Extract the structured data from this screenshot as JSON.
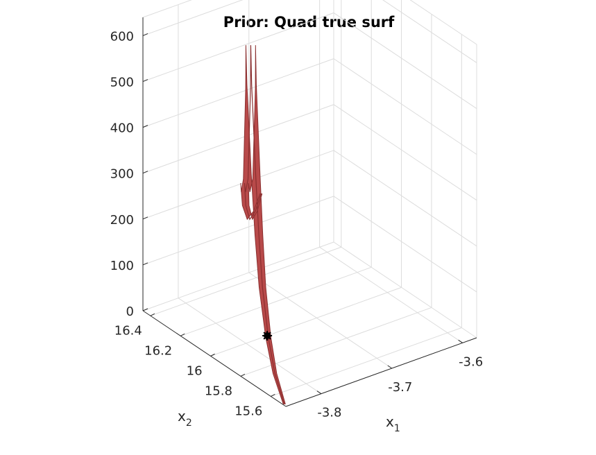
{
  "chart_data": {
    "type": "surface3d",
    "title": "Prior: Quad true surf",
    "xlabel": {
      "base": "x",
      "sub": "1"
    },
    "ylabel": {
      "base": "x",
      "sub": "2"
    },
    "zlabel": "",
    "x_ticks": [
      "-3.8",
      "-3.7",
      "-3.6"
    ],
    "y_ticks": [
      "15.6",
      "15.8",
      "16",
      "16.2",
      "16.4"
    ],
    "z_ticks": [
      "0",
      "100",
      "200",
      "300",
      "400",
      "500",
      "600"
    ],
    "xlim": [
      -3.85,
      -3.58
    ],
    "ylim": [
      15.5,
      16.45
    ],
    "zlim": [
      0,
      640
    ],
    "surface_color": "#b84a4a",
    "surface_edge_color": "#8a2f2f",
    "marker_color": "#000000",
    "surface_profile": [
      {
        "x": -3.848,
        "y": 15.52,
        "z": 0
      },
      {
        "x": -3.84,
        "y": 15.62,
        "z": 40
      },
      {
        "x": -3.828,
        "y": 15.72,
        "z": 90
      },
      {
        "x": -3.815,
        "y": 15.82,
        "z": 170
      },
      {
        "x": -3.803,
        "y": 15.9,
        "z": 260
      },
      {
        "x": -3.797,
        "y": 15.95,
        "z": 380
      },
      {
        "x": -3.792,
        "y": 16.0,
        "z": 560
      },
      {
        "x": -3.789,
        "y": 16.02,
        "z": 640
      },
      {
        "x": -3.785,
        "y": 16.04,
        "z": 540
      },
      {
        "x": -3.78,
        "y": 16.08,
        "z": 330
      },
      {
        "x": -3.775,
        "y": 16.12,
        "z": 290
      },
      {
        "x": -3.77,
        "y": 16.15,
        "z": 300
      },
      {
        "x": -3.762,
        "y": 16.18,
        "z": 240
      },
      {
        "x": -3.752,
        "y": 16.2,
        "z": 200
      },
      {
        "x": -3.742,
        "y": 16.21,
        "z": 210
      },
      {
        "x": -3.732,
        "y": 16.22,
        "z": 240
      }
    ],
    "marker": {
      "x": -3.77,
      "y": 16.0,
      "z": 0
    }
  }
}
